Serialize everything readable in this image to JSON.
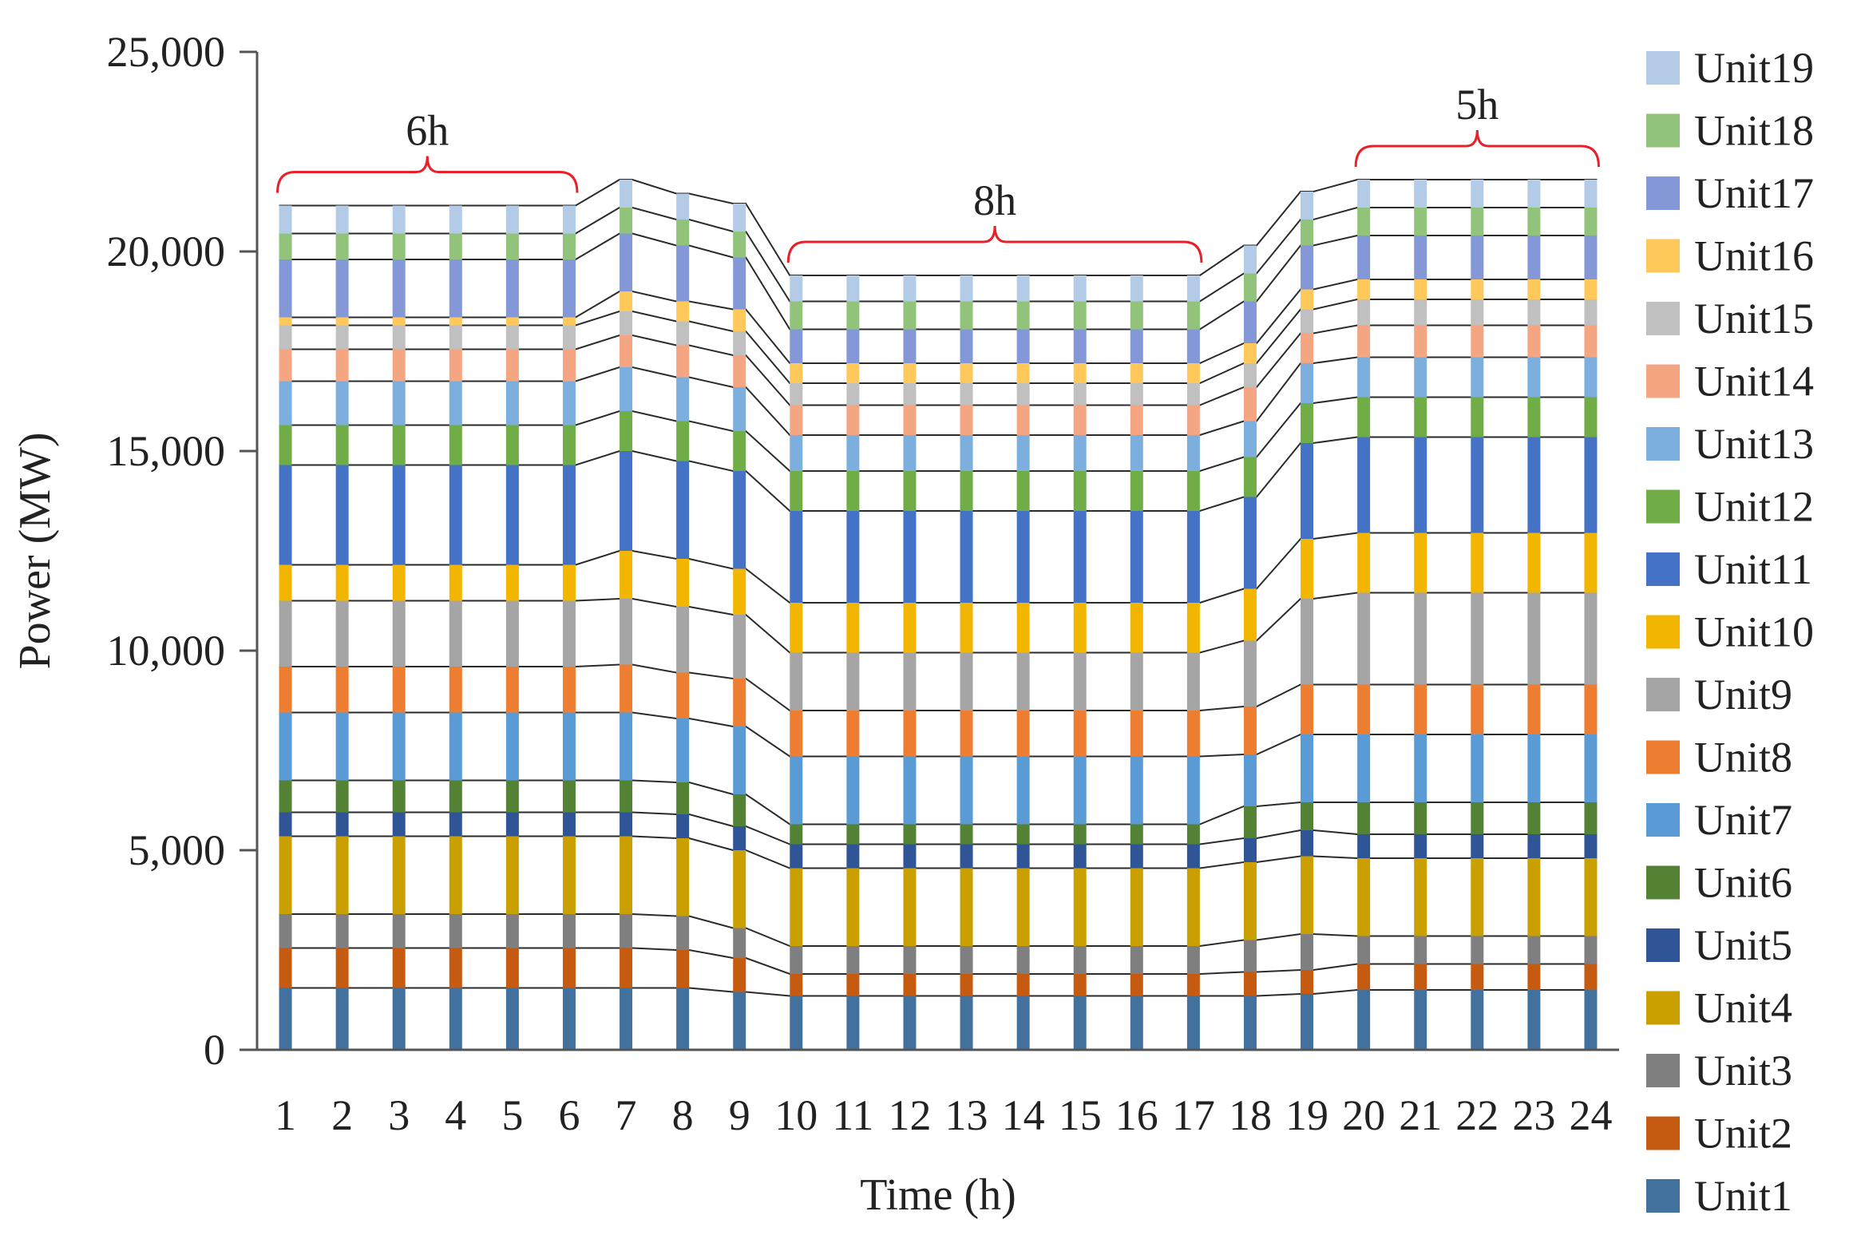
{
  "chart_data": {
    "type": "bar",
    "stacked": true,
    "xlabel": "Time (h)",
    "ylabel": "Power (MW)",
    "ylim": [
      0,
      25000
    ],
    "yticks": [
      0,
      5000,
      10000,
      15000,
      20000,
      25000
    ],
    "ytick_labels": [
      "0",
      "5,000",
      "10,000",
      "15,000",
      "20,000",
      "25,000"
    ],
    "categories": [
      "1",
      "2",
      "3",
      "4",
      "5",
      "6",
      "7",
      "8",
      "9",
      "10",
      "11",
      "12",
      "13",
      "14",
      "15",
      "16",
      "17",
      "18",
      "19",
      "20",
      "21",
      "22",
      "23",
      "24"
    ],
    "legend_position": "right",
    "series_lines": true,
    "annotations": [
      {
        "label": "6h",
        "from": "1",
        "to": "6"
      },
      {
        "label": "8h",
        "from": "10",
        "to": "17"
      },
      {
        "label": "5h",
        "from": "20",
        "to": "24"
      }
    ],
    "annotation_color": "#e8202a",
    "series": [
      {
        "name": "Unit1",
        "color": "#41719c",
        "values": [
          1550,
          1550,
          1550,
          1550,
          1550,
          1550,
          1550,
          1550,
          1450,
          1350,
          1350,
          1350,
          1350,
          1350,
          1350,
          1350,
          1350,
          1350,
          1400,
          1500,
          1500,
          1500,
          1500,
          1500
        ]
      },
      {
        "name": "Unit2",
        "color": "#c55a11",
        "values": [
          1000,
          1000,
          1000,
          1000,
          1000,
          1000,
          1000,
          950,
          850,
          550,
          550,
          550,
          550,
          550,
          550,
          550,
          550,
          600,
          600,
          650,
          650,
          650,
          650,
          650
        ]
      },
      {
        "name": "Unit3",
        "color": "#7f7f7f",
        "values": [
          850,
          850,
          850,
          850,
          850,
          850,
          850,
          850,
          750,
          700,
          700,
          700,
          700,
          700,
          700,
          700,
          700,
          800,
          900,
          700,
          700,
          700,
          700,
          700
        ]
      },
      {
        "name": "Unit4",
        "color": "#c9a000",
        "values": [
          1950,
          1950,
          1950,
          1950,
          1950,
          1950,
          1950,
          1950,
          1950,
          1950,
          1950,
          1950,
          1950,
          1950,
          1950,
          1950,
          1950,
          1950,
          1950,
          1950,
          1950,
          1950,
          1950,
          1950
        ]
      },
      {
        "name": "Unit5",
        "color": "#2f5597",
        "values": [
          600,
          600,
          600,
          600,
          600,
          600,
          600,
          600,
          600,
          600,
          600,
          600,
          600,
          600,
          600,
          600,
          600,
          600,
          650,
          600,
          600,
          600,
          600,
          600
        ]
      },
      {
        "name": "Unit6",
        "color": "#548235",
        "values": [
          800,
          800,
          800,
          800,
          800,
          800,
          800,
          800,
          800,
          500,
          500,
          500,
          500,
          500,
          500,
          500,
          500,
          800,
          700,
          800,
          800,
          800,
          800,
          800
        ]
      },
      {
        "name": "Unit7",
        "color": "#5b9bd5",
        "values": [
          1700,
          1700,
          1700,
          1700,
          1700,
          1700,
          1700,
          1600,
          1700,
          1700,
          1700,
          1700,
          1700,
          1700,
          1700,
          1700,
          1700,
          1300,
          1700,
          1700,
          1700,
          1700,
          1700,
          1700
        ]
      },
      {
        "name": "Unit8",
        "color": "#ed7d31",
        "values": [
          1150,
          1150,
          1150,
          1150,
          1150,
          1150,
          1200,
          1150,
          1200,
          1150,
          1150,
          1150,
          1150,
          1150,
          1150,
          1150,
          1150,
          1200,
          1250,
          1250,
          1250,
          1250,
          1250,
          1250
        ]
      },
      {
        "name": "Unit9",
        "color": "#a5a5a5",
        "values": [
          1650,
          1650,
          1650,
          1650,
          1650,
          1650,
          1650,
          1650,
          1600,
          1450,
          1450,
          1450,
          1450,
          1450,
          1450,
          1450,
          1450,
          1650,
          2150,
          2300,
          2300,
          2300,
          2300,
          2300
        ]
      },
      {
        "name": "Unit10",
        "color": "#f2b600",
        "values": [
          900,
          900,
          900,
          900,
          900,
          900,
          1200,
          1200,
          1150,
          1250,
          1250,
          1250,
          1250,
          1250,
          1250,
          1250,
          1250,
          1300,
          1500,
          1500,
          1500,
          1500,
          1500,
          1500
        ]
      },
      {
        "name": "Unit11",
        "color": "#4472c4",
        "values": [
          2500,
          2500,
          2500,
          2500,
          2500,
          2500,
          2500,
          2450,
          2450,
          2300,
          2300,
          2300,
          2300,
          2300,
          2300,
          2300,
          2300,
          2300,
          2400,
          2400,
          2400,
          2400,
          2400,
          2400
        ]
      },
      {
        "name": "Unit12",
        "color": "#70ad47",
        "values": [
          1000,
          1000,
          1000,
          1000,
          1000,
          1000,
          1000,
          1000,
          1000,
          1000,
          1000,
          1000,
          1000,
          1000,
          1000,
          1000,
          1000,
          1000,
          1000,
          1000,
          1000,
          1000,
          1000,
          1000
        ]
      },
      {
        "name": "Unit13",
        "color": "#7cafdd",
        "values": [
          1100,
          1100,
          1100,
          1100,
          1100,
          1100,
          1100,
          1100,
          1100,
          900,
          900,
          900,
          900,
          900,
          900,
          900,
          900,
          900,
          1000,
          1000,
          1000,
          1000,
          1000,
          1000
        ]
      },
      {
        "name": "Unit14",
        "color": "#f4a582",
        "values": [
          800,
          800,
          800,
          800,
          800,
          800,
          800,
          800,
          800,
          750,
          750,
          750,
          750,
          750,
          750,
          750,
          750,
          850,
          750,
          800,
          800,
          800,
          800,
          800
        ]
      },
      {
        "name": "Unit15",
        "color": "#c0c0c0",
        "values": [
          600,
          600,
          600,
          600,
          600,
          600,
          600,
          600,
          600,
          550,
          550,
          550,
          550,
          550,
          550,
          550,
          550,
          600,
          600,
          650,
          650,
          650,
          650,
          650
        ]
      },
      {
        "name": "Unit16",
        "color": "#ffc85a",
        "values": [
          200,
          200,
          200,
          200,
          200,
          200,
          500,
          500,
          550,
          500,
          500,
          500,
          500,
          500,
          500,
          500,
          500,
          500,
          500,
          500,
          500,
          500,
          500,
          500
        ]
      },
      {
        "name": "Unit17",
        "color": "#8497d6",
        "values": [
          1450,
          1450,
          1450,
          1450,
          1450,
          1450,
          1450,
          1400,
          1300,
          850,
          850,
          850,
          850,
          850,
          850,
          850,
          850,
          1050,
          1100,
          1100,
          1100,
          1100,
          1100,
          1100
        ]
      },
      {
        "name": "Unit18",
        "color": "#92c37a",
        "values": [
          650,
          650,
          650,
          650,
          650,
          650,
          650,
          650,
          650,
          700,
          700,
          700,
          700,
          700,
          700,
          700,
          700,
          700,
          650,
          700,
          700,
          700,
          700,
          700
        ]
      },
      {
        "name": "Unit19",
        "color": "#b4cbe8",
        "values": [
          700,
          700,
          700,
          700,
          700,
          700,
          700,
          650,
          700,
          650,
          650,
          650,
          650,
          650,
          650,
          650,
          650,
          700,
          700,
          700,
          700,
          700,
          700,
          700
        ]
      }
    ]
  }
}
